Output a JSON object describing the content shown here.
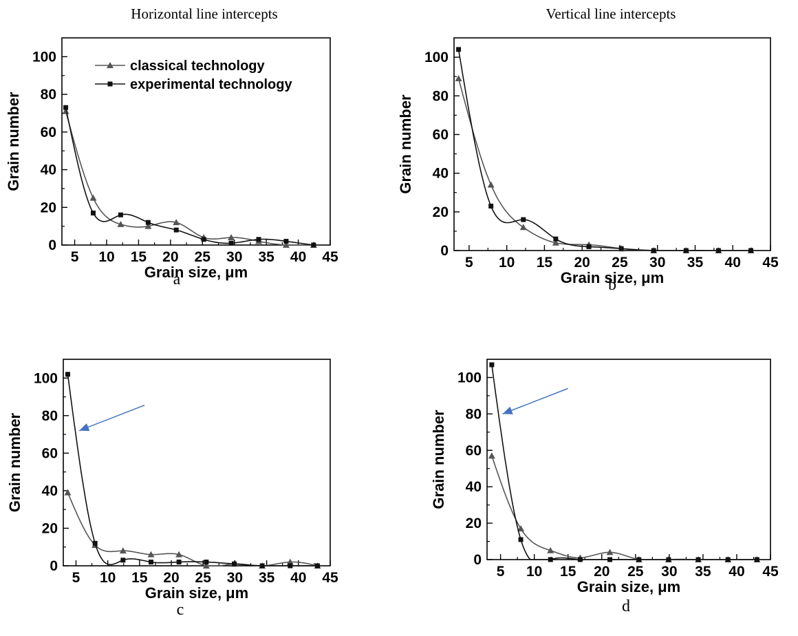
{
  "figure": {
    "column_titles": [
      "Horizontal line intercepts",
      "Vertical line intercepts"
    ]
  },
  "chart_data": [
    {
      "type": "line",
      "panel_label": "a",
      "xlabel": "Grain size, μm",
      "ylabel": "Grain number",
      "xlim": [
        3,
        45
      ],
      "ylim": [
        0,
        110
      ],
      "xticks": [
        5,
        10,
        15,
        20,
        25,
        30,
        35,
        40,
        45
      ],
      "yticks": [
        0,
        20,
        40,
        60,
        80,
        100
      ],
      "legend": "top-left",
      "series": [
        {
          "name": "classical technology",
          "marker": "triangle",
          "color": "#555555",
          "x": [
            3.6,
            7.9,
            12.2,
            16.5,
            20.9,
            25.2,
            29.5,
            33.8,
            38.1,
            42.4
          ],
          "y": [
            71,
            25,
            11,
            10,
            12,
            4,
            4,
            2,
            0,
            0
          ]
        },
        {
          "name": "experimental technology",
          "marker": "square",
          "color": "#111111",
          "x": [
            3.6,
            7.9,
            12.2,
            16.5,
            20.9,
            25.2,
            29.5,
            33.8,
            38.1,
            42.4
          ],
          "y": [
            73,
            17,
            16,
            12,
            8,
            3,
            1,
            3,
            2,
            0
          ]
        }
      ]
    },
    {
      "type": "line",
      "panel_label": "b",
      "xlabel": "Grain size, μm",
      "ylabel": "Grain number",
      "xlim": [
        3,
        45
      ],
      "ylim": [
        0,
        110
      ],
      "xticks": [
        5,
        10,
        15,
        20,
        25,
        30,
        35,
        40,
        45
      ],
      "yticks": [
        0,
        20,
        40,
        60,
        80,
        100
      ],
      "series": [
        {
          "marker": "triangle",
          "color": "#555555",
          "x": [
            3.6,
            7.9,
            12.2,
            16.5,
            20.9,
            25.2,
            29.5,
            33.8,
            38.1,
            42.4
          ],
          "y": [
            89,
            34,
            12,
            4,
            3,
            1,
            0,
            0,
            0,
            0
          ]
        },
        {
          "marker": "square",
          "color": "#111111",
          "x": [
            3.6,
            7.9,
            12.2,
            16.5,
            20.9,
            25.2,
            29.5,
            33.8,
            38.1,
            42.4
          ],
          "y": [
            104,
            23,
            16,
            6,
            2,
            1,
            0,
            0,
            0,
            0
          ]
        }
      ]
    },
    {
      "type": "line",
      "panel_label": "c",
      "xlabel": "Grain size, μm",
      "ylabel": "Grain number",
      "xlim": [
        3,
        45
      ],
      "ylim": [
        0,
        110
      ],
      "xticks": [
        5,
        10,
        15,
        20,
        25,
        30,
        35,
        40,
        45
      ],
      "yticks": [
        0,
        20,
        40,
        60,
        80,
        100
      ],
      "annotation_arrow": {
        "color": "#4472c4",
        "points_to": {
          "x": 5.5,
          "y": 72
        }
      },
      "series": [
        {
          "marker": "triangle",
          "color": "#555555",
          "x": [
            3.7,
            8.0,
            12.4,
            16.8,
            21.2,
            25.5,
            29.9,
            34.3,
            38.7,
            43.0
          ],
          "y": [
            39,
            11,
            8,
            6,
            6,
            0,
            1,
            0,
            2,
            0
          ]
        },
        {
          "marker": "square",
          "color": "#111111",
          "x": [
            3.7,
            8.0,
            12.4,
            16.8,
            21.2,
            25.5,
            29.9,
            34.3,
            38.7,
            43.0
          ],
          "y": [
            102,
            12,
            3,
            2,
            2,
            2,
            1,
            0,
            0,
            0
          ]
        }
      ]
    },
    {
      "type": "line",
      "panel_label": "d",
      "xlabel": "Grain size, μm",
      "ylabel": "Grain number",
      "xlim": [
        3,
        45
      ],
      "ylim": [
        0,
        110
      ],
      "xticks": [
        5,
        10,
        15,
        20,
        25,
        30,
        35,
        40,
        45
      ],
      "yticks": [
        0,
        20,
        40,
        60,
        80,
        100
      ],
      "annotation_arrow": {
        "color": "#4472c4",
        "points_to": {
          "x": 5.3,
          "y": 80
        }
      },
      "series": [
        {
          "marker": "triangle",
          "color": "#555555",
          "x": [
            3.7,
            8.0,
            12.4,
            16.8,
            21.2,
            25.5,
            29.9,
            34.3,
            38.7,
            43.0
          ],
          "y": [
            57,
            17,
            5,
            1,
            4,
            0,
            0,
            0,
            0,
            0
          ]
        },
        {
          "marker": "square",
          "color": "#111111",
          "x": [
            3.7,
            8.0,
            12.4,
            16.8,
            21.2,
            25.5,
            29.9,
            34.3,
            38.7,
            43.0
          ],
          "y": [
            107,
            11,
            0,
            0,
            0,
            0,
            0,
            0,
            0,
            0
          ]
        }
      ]
    }
  ]
}
